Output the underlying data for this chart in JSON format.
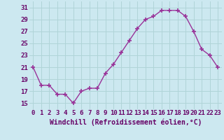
{
  "x": [
    0,
    1,
    2,
    3,
    4,
    5,
    6,
    7,
    8,
    9,
    10,
    11,
    12,
    13,
    14,
    15,
    16,
    17,
    18,
    19,
    20,
    21,
    22,
    23
  ],
  "y": [
    21,
    18,
    18,
    16.5,
    16.5,
    15,
    17,
    17.5,
    17.5,
    20,
    21.5,
    23.5,
    25.5,
    27.5,
    29,
    29.5,
    30.5,
    30.5,
    30.5,
    29.5,
    27,
    24,
    23,
    21
  ],
  "line_color": "#993399",
  "marker": "+",
  "marker_size": 4,
  "marker_lw": 1.2,
  "line_width": 1.0,
  "bg_color": "#cce8f0",
  "grid_color": "#b0d4d8",
  "xlabel": "Windchill (Refroidissement éolien,°C)",
  "xlabel_fontsize": 7,
  "tick_fontsize": 6.5,
  "ylim": [
    14,
    32
  ],
  "yticks": [
    15,
    17,
    19,
    21,
    23,
    25,
    27,
    29,
    31
  ],
  "xlim": [
    -0.5,
    23.5
  ],
  "xticks": [
    0,
    1,
    2,
    3,
    4,
    5,
    6,
    7,
    8,
    9,
    10,
    11,
    12,
    13,
    14,
    15,
    16,
    17,
    18,
    19,
    20,
    21,
    22,
    23
  ]
}
